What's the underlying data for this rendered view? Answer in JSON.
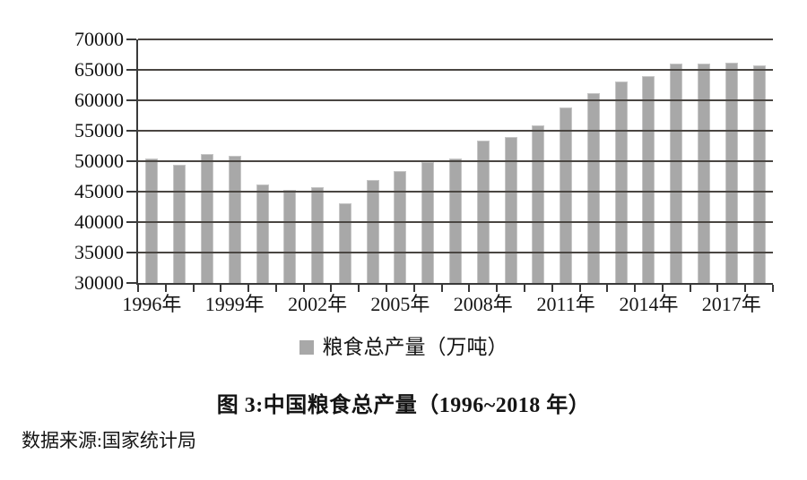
{
  "figure": {
    "title": "图 3:中国粮食总产量（1996~2018 年）",
    "source": "数据来源:国家统计局"
  },
  "chart_data": {
    "type": "bar",
    "title": "图 3:中国粮食总产量（1996~2018 年）",
    "legend": "粮食总产量（万吨）",
    "legend_position": "bottom",
    "categories": [
      "1996年",
      "1997年",
      "1998年",
      "1999年",
      "2000年",
      "2001年",
      "2002年",
      "2003年",
      "2004年",
      "2005年",
      "2006年",
      "2007年",
      "2008年",
      "2009年",
      "2010年",
      "2011年",
      "2012年",
      "2013年",
      "2014年",
      "2015年",
      "2016年",
      "2017年",
      "2018年"
    ],
    "values": [
      50454,
      49417,
      51230,
      50839,
      46218,
      45264,
      45706,
      43070,
      46947,
      48402,
      49804,
      50414,
      53434,
      53941,
      55911,
      58849,
      61223,
      63048,
      63965,
      66060,
      66044,
      66161,
      65789
    ],
    "unit": "万吨",
    "ylim": [
      30000,
      70000
    ],
    "yticks": [
      70000,
      65000,
      60000,
      55000,
      50000,
      45000,
      40000,
      35000,
      30000
    ],
    "xtick_label_every": 3,
    "grid": "horizontal",
    "xlabel": "",
    "ylabel": "",
    "source": "数据来源:国家统计局",
    "colors": {
      "bar": "#a8a8a8",
      "bar_border": "#c6c6c6",
      "gridline": "#4a4642",
      "axis": "#3a3a3a",
      "text": "#141414"
    }
  }
}
